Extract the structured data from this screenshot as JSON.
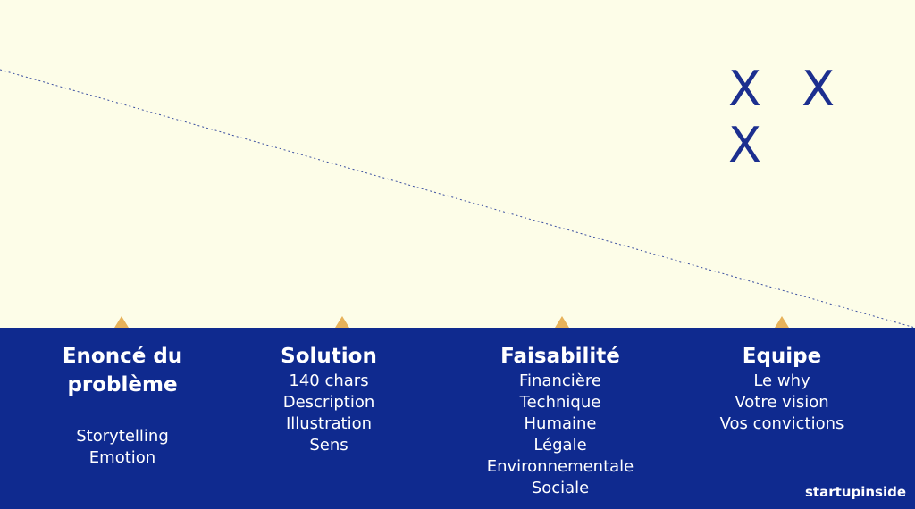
{
  "slide": {
    "mark_text": "X X X",
    "brand": "startupinside",
    "colors": {
      "top_background": "#fdfde8",
      "band_background": "#0f2a8f",
      "marker": "#e7b25a",
      "mark": "#1c2f8f",
      "text": "#ffffff"
    },
    "columns": [
      {
        "title": "Enoncé du problème",
        "items": [
          "Storytelling",
          "Emotion"
        ]
      },
      {
        "title": "Solution",
        "items": [
          "140 chars",
          "Description",
          "Illustration",
          "Sens"
        ]
      },
      {
        "title": "Faisabilité",
        "items": [
          "Financière",
          "Technique",
          "Humaine",
          "Légale",
          "Environnementale",
          "Sociale"
        ]
      },
      {
        "title": "Equipe",
        "items": [
          "Le why",
          "Votre vision",
          "Vos convictions"
        ]
      }
    ]
  }
}
